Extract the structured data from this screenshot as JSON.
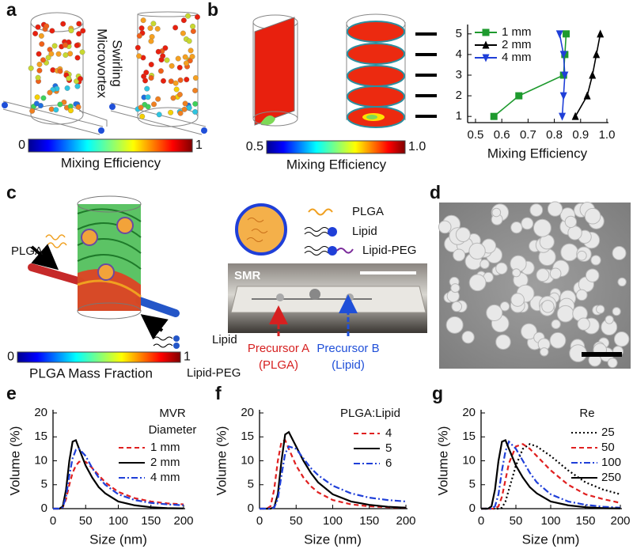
{
  "panel_labels": [
    "a",
    "b",
    "c",
    "d",
    "e",
    "f",
    "g"
  ],
  "panel_a": {
    "side_label": [
      "Swirling",
      "Microvortex"
    ],
    "colorbar": {
      "title": "Mixing Efficiency",
      "lim": [
        0,
        1
      ],
      "ticks": [
        0,
        1
      ]
    }
  },
  "panel_b": {
    "colorbar": {
      "title": "Mixing Efficiency",
      "lim": [
        0.5,
        1
      ],
      "ticks": [
        0.5,
        {
          "value": 1,
          "label": "1.0"
        }
      ]
    }
  },
  "panel_c": {
    "inlet_labels": [
      "PLGA",
      "Lipid",
      "Lipid-PEG"
    ],
    "colorbar": {
      "title": "PLGA Mass Fraction",
      "lim": [
        0,
        1
      ],
      "ticks": [
        0,
        1
      ]
    },
    "legend": [
      "PLGA",
      "Lipid",
      "Lipid-PEG"
    ],
    "device_label": "SMR",
    "inlets": [
      [
        "Precursor A",
        "(PLGA)"
      ],
      [
        "Precursor B",
        "(Lipid)"
      ]
    ]
  },
  "chart_data": [
    {
      "type": "line",
      "xlabel": "Mixing Efficiency",
      "xlim": [
        0.47,
        1.0
      ],
      "xticks": [
        0.5,
        0.6,
        0.7,
        0.8,
        0.9,
        {
          "value": 1,
          "label": "1.0"
        }
      ],
      "ylim": [
        0.7,
        5.3
      ],
      "yticks": [
        1,
        2,
        3,
        4,
        5
      ],
      "series": [
        {
          "name": "1 mm",
          "color": "#1e9a2e",
          "marker": "square",
          "dash": "solid",
          "x": [
            0.57,
            0.665,
            0.835,
            0.84,
            0.845
          ],
          "values": [
            1,
            2,
            3,
            4,
            5
          ]
        },
        {
          "name": "2 mm",
          "color": "#000000",
          "marker": "triangle-up",
          "dash": "solid",
          "x": [
            0.88,
            0.925,
            0.945,
            0.96,
            0.975
          ],
          "values": [
            1,
            2,
            3,
            4,
            5
          ]
        },
        {
          "name": "4 mm",
          "color": "#1f3fd8",
          "marker": "triangle-down",
          "dash": "solid",
          "x": [
            0.83,
            0.835,
            0.84,
            0.835,
            0.82
          ],
          "values": [
            1,
            2,
            3,
            4,
            5
          ]
        }
      ]
    },
    {
      "type": "line",
      "xlabel": "Size (nm)",
      "ylabel": "Volume (%)",
      "legend_title": [
        "MVR",
        "Diameter"
      ],
      "xlim": [
        0,
        200
      ],
      "xticks": [
        0,
        50,
        100,
        150,
        200
      ],
      "ylim": [
        0,
        20
      ],
      "yticks": [
        0,
        5,
        10,
        15,
        20
      ],
      "x": [
        0,
        10,
        15,
        20,
        25,
        30,
        35,
        40,
        50,
        60,
        70,
        80,
        100,
        125,
        150,
        175,
        200
      ],
      "series": [
        {
          "name": "1 mm",
          "color": "#e02020",
          "dash": "dashed",
          "values": [
            0,
            0,
            0.3,
            2,
            5,
            7.5,
            9,
            9.8,
            9.8,
            8.5,
            7,
            5.5,
            3.5,
            2.2,
            1.5,
            1.1,
            0.9
          ]
        },
        {
          "name": "2 mm",
          "color": "#000000",
          "dash": "solid",
          "values": [
            0,
            0,
            0.5,
            4,
            10,
            14,
            14.3,
            12.5,
            9,
            6.5,
            4.5,
            3.2,
            1.5,
            0.7,
            0.3,
            0.1,
            0.05
          ]
        },
        {
          "name": "4 mm",
          "color": "#1f3fd8",
          "dash": "dashdot",
          "values": [
            0,
            0,
            0.3,
            2.5,
            7,
            10.5,
            12.3,
            12.5,
            11,
            8.5,
            6.5,
            5,
            3,
            1.8,
            1.2,
            0.9,
            0.7
          ]
        }
      ]
    },
    {
      "type": "line",
      "xlabel": "Size (nm)",
      "ylabel": "Volume (%)",
      "legend_title": [
        "PLGA:Lipid"
      ],
      "xlim": [
        0,
        200
      ],
      "xticks": [
        0,
        50,
        100,
        150,
        200
      ],
      "ylim": [
        0,
        20
      ],
      "yticks": [
        0,
        5,
        10,
        15,
        20
      ],
      "x": [
        0,
        10,
        15,
        20,
        25,
        30,
        35,
        40,
        50,
        60,
        70,
        80,
        100,
        125,
        150,
        175,
        200
      ],
      "series": [
        {
          "name": "4",
          "color": "#e02020",
          "dash": "dashed",
          "values": [
            0,
            0,
            0.5,
            4,
            10,
            14,
            14.3,
            12.5,
            9,
            6.5,
            4.7,
            3.4,
            1.8,
            0.9,
            0.5,
            0.3,
            0.2
          ]
        },
        {
          "name": "5",
          "color": "#000000",
          "dash": "solid",
          "values": [
            0,
            0,
            0,
            0.3,
            3,
            10,
            15.5,
            16,
            13,
            10,
            7.5,
            5.5,
            3,
            1.5,
            0.8,
            0.4,
            0.2
          ]
        },
        {
          "name": "6",
          "color": "#1f3fd8",
          "dash": "dashdot",
          "values": [
            0,
            0,
            0,
            0.2,
            2,
            7,
            11.5,
            13,
            12.5,
            10.5,
            8.5,
            7,
            4.8,
            3.2,
            2.3,
            1.8,
            1.5
          ]
        }
      ]
    },
    {
      "type": "line",
      "xlabel": "Size (nm)",
      "ylabel": "Volume (%)",
      "legend_title": [
        "Re"
      ],
      "xlim": [
        0,
        200
      ],
      "xticks": [
        0,
        50,
        100,
        150,
        200
      ],
      "ylim": [
        0,
        20
      ],
      "yticks": [
        0,
        5,
        10,
        15,
        20
      ],
      "x": [
        0,
        10,
        15,
        20,
        25,
        30,
        35,
        40,
        50,
        60,
        70,
        80,
        100,
        125,
        150,
        175,
        200
      ],
      "series": [
        {
          "name": "25",
          "color": "#000000",
          "dash": "dotted",
          "values": [
            0,
            0,
            0,
            0,
            0,
            0.2,
            1.5,
            4,
            9,
            12.5,
            13.5,
            13,
            11,
            8,
            5.5,
            4,
            3
          ]
        },
        {
          "name": "50",
          "color": "#e02020",
          "dash": "dashed",
          "values": [
            0,
            0,
            0,
            0,
            0.5,
            2.5,
            6,
            9.5,
            13,
            13.5,
            12.5,
            11,
            8,
            5,
            3,
            2,
            1.2
          ]
        },
        {
          "name": "100",
          "color": "#1f3fd8",
          "dash": "dashdot",
          "values": [
            0,
            0,
            0,
            0.5,
            3,
            8,
            12,
            14,
            12.5,
            10,
            7.5,
            5.5,
            3,
            1.5,
            0.8,
            0.4,
            0.2
          ]
        },
        {
          "name": "250",
          "color": "#000000",
          "dash": "solid",
          "values": [
            0,
            0,
            0.5,
            4,
            10,
            14,
            14.3,
            12.5,
            9,
            6.5,
            4.5,
            3.2,
            1.5,
            0.7,
            0.3,
            0.1,
            0.05
          ]
        }
      ]
    }
  ]
}
